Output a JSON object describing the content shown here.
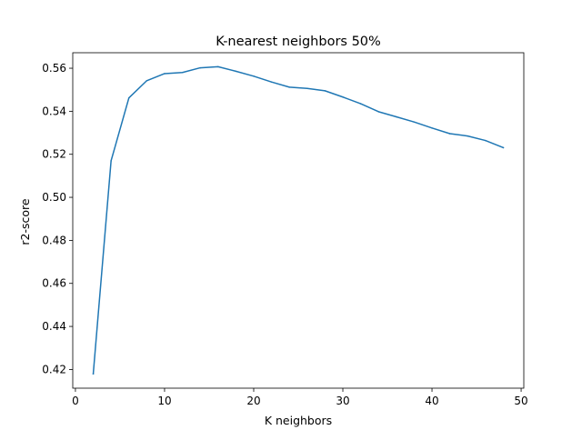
{
  "chart_data": {
    "type": "line",
    "title": "K-nearest neighbors 50%",
    "xlabel": "K neighbors",
    "ylabel": "r2-score",
    "xlim": [
      -0.3,
      50.3
    ],
    "ylim": [
      0.4113,
      0.5672
    ],
    "xticks": [
      0,
      10,
      20,
      30,
      40,
      50
    ],
    "yticks": [
      0.42,
      0.44,
      0.46,
      0.48,
      0.5,
      0.52,
      0.54,
      0.56
    ],
    "xtick_labels": [
      "0",
      "10",
      "20",
      "30",
      "40",
      "50"
    ],
    "ytick_labels": [
      "0.42",
      "0.44",
      "0.46",
      "0.48",
      "0.50",
      "0.52",
      "0.54",
      "0.56"
    ],
    "grid": false,
    "legend": null,
    "series": [
      {
        "color": "#1f77b4",
        "x": [
          2,
          4,
          6,
          8,
          10,
          12,
          14,
          16,
          18,
          20,
          22,
          24,
          26,
          28,
          30,
          32,
          34,
          36,
          38,
          40,
          42,
          44,
          46,
          48
        ],
        "y": [
          0.418,
          0.517,
          0.5462,
          0.5542,
          0.5575,
          0.558,
          0.5602,
          0.5607,
          0.5586,
          0.5563,
          0.5536,
          0.5512,
          0.5506,
          0.5495,
          0.5466,
          0.5435,
          0.5398,
          0.5374,
          0.535,
          0.5322,
          0.5296,
          0.5285,
          0.5264,
          0.5231
        ]
      }
    ]
  }
}
